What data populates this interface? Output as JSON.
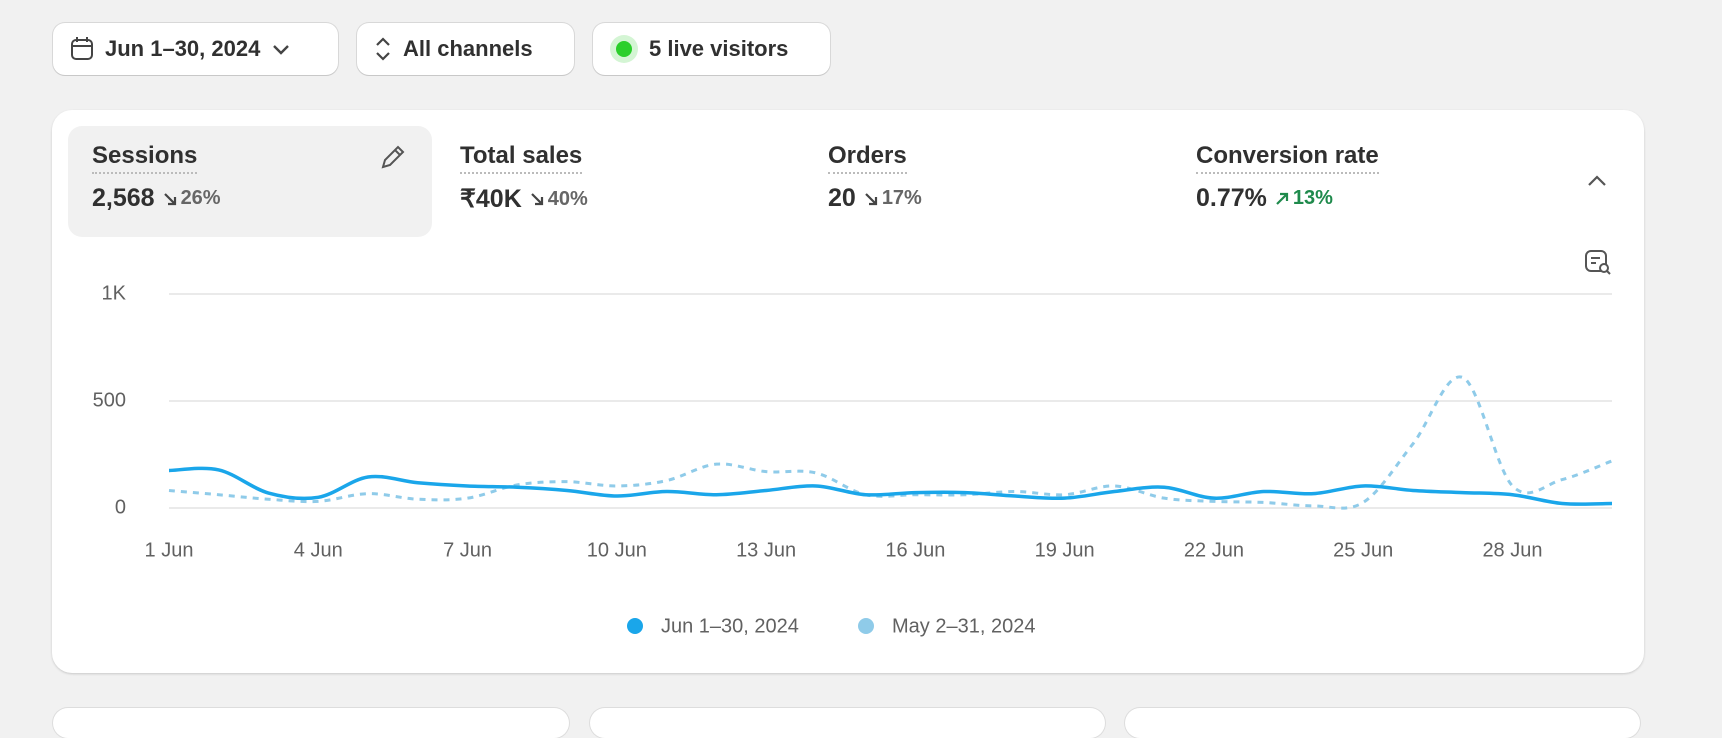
{
  "toolbar": {
    "date_range": "Jun 1–30, 2024",
    "channels": "All channels",
    "live": "5 live visitors"
  },
  "metrics": [
    {
      "title": "Sessions",
      "value": "2,568",
      "change": "26%"
    },
    {
      "title": "Total sales",
      "value": "₹40K",
      "change": "40%"
    },
    {
      "title": "Orders",
      "value": "20",
      "change": "17%"
    },
    {
      "title": "Conversion rate",
      "value": "0.77%",
      "change": "13%"
    }
  ],
  "chart_data": {
    "type": "line",
    "categories": [
      "1 Jun",
      null,
      null,
      "4 Jun",
      null,
      null,
      "7 Jun",
      null,
      null,
      "10 Jun",
      null,
      null,
      "13 Jun",
      null,
      null,
      "16 Jun",
      null,
      null,
      "19 Jun",
      null,
      null,
      "22 Jun",
      null,
      null,
      "25 Jun",
      null,
      null,
      "28 Jun",
      null,
      null
    ],
    "series": [
      {
        "name": "Jun 1–30, 2024",
        "color": "#1aa6ea",
        "line_style": "solid",
        "values": [
          175,
          178,
          70,
          50,
          145,
          118,
          103,
          97,
          82,
          56,
          77,
          62,
          82,
          103,
          62,
          72,
          72,
          56,
          46,
          77,
          97,
          46,
          77,
          67,
          103,
          82,
          72,
          62,
          21,
          21
        ]
      },
      {
        "name": "May 2–31, 2024",
        "color": "#8fcbe9",
        "line_style": "dashed",
        "values": [
          82,
          62,
          41,
          31,
          67,
          41,
          46,
          108,
          123,
          103,
          128,
          205,
          170,
          164,
          62,
          62,
          62,
          77,
          62,
          103,
          46,
          31,
          26,
          10,
          26,
          300,
          610,
          103,
          133,
          220
        ]
      }
    ],
    "ylim": [
      0,
      1000
    ],
    "yticks": [
      0,
      500,
      {
        "value": 1000,
        "label": "1K"
      }
    ],
    "grid": true
  }
}
